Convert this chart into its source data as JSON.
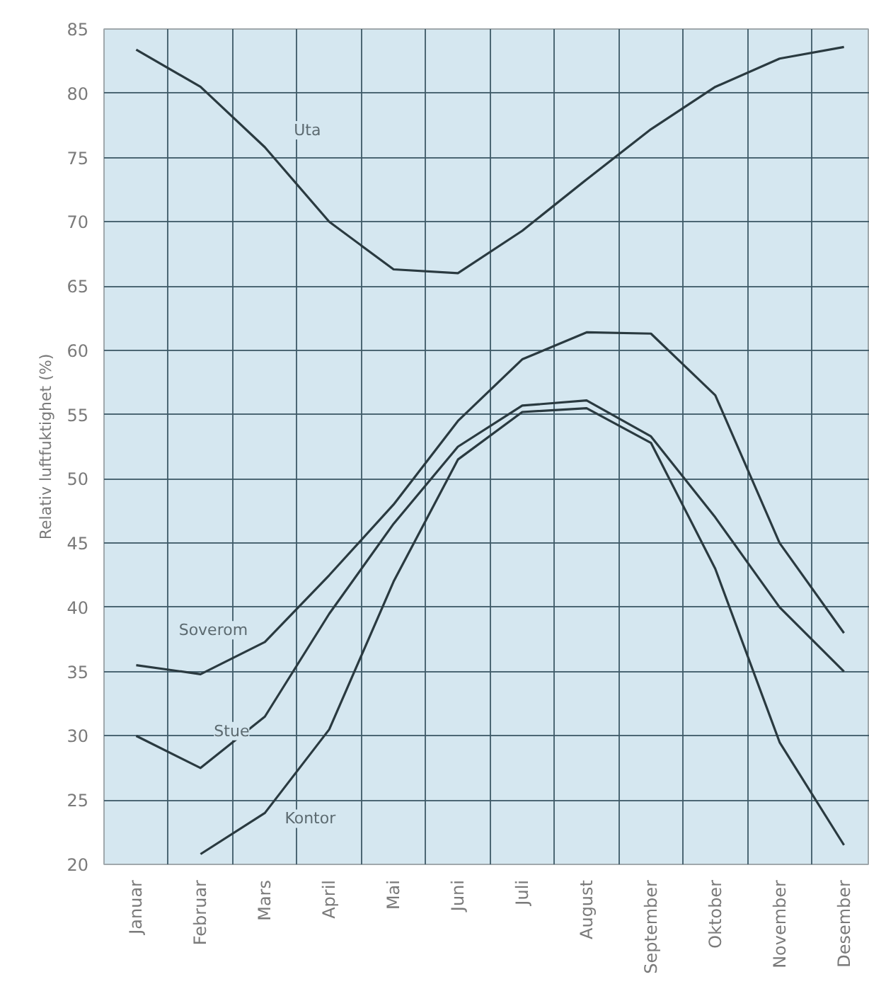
{
  "chart_data": {
    "type": "line",
    "ylabel": "Relativ luftfuktighet (%)",
    "categories": [
      "Januar",
      "Februar",
      "Mars",
      "April",
      "Mai",
      "Juni",
      "Juli",
      "August",
      "September",
      "Oktober",
      "November",
      "Desember"
    ],
    "ylim": [
      20,
      85
    ],
    "yticks": [
      20,
      25,
      30,
      35,
      40,
      45,
      50,
      55,
      60,
      65,
      70,
      75,
      80,
      85
    ],
    "grid": true,
    "marker": "none",
    "line_style": "solid",
    "series": [
      {
        "name": "Uta",
        "color": "#2a3a40",
        "values": [
          83.4,
          80.5,
          75.8,
          70,
          66.3,
          66,
          69.3,
          73.3,
          77.2,
          80.5,
          82.7,
          83.6
        ]
      },
      {
        "name": "Soverom",
        "color": "#2a3a40",
        "values": [
          35.5,
          34.8,
          37.3,
          42.5,
          48,
          54.5,
          59.3,
          61.4,
          61.3,
          56.5,
          45,
          38
        ]
      },
      {
        "name": "Stue",
        "color": "#2a3a40",
        "values": [
          30,
          27.5,
          31.5,
          39.5,
          46.5,
          52.5,
          55.7,
          56.1,
          53.3,
          47,
          40,
          35
        ]
      },
      {
        "name": "Kontor",
        "color": "#2a3a40",
        "values": [
          null,
          20.8,
          24,
          30.5,
          42,
          51.5,
          55.2,
          55.5,
          52.8,
          43,
          29.5,
          21.5
        ]
      }
    ]
  }
}
